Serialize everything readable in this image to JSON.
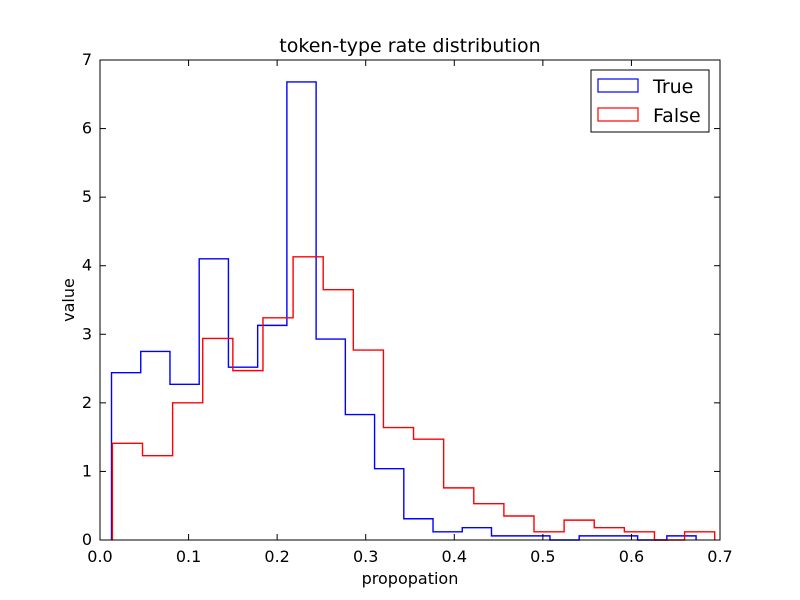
{
  "chart_data": {
    "type": "histogram",
    "title": "token-type rate distribution",
    "xlabel": "propopation",
    "ylabel": "value",
    "xlim": [
      0,
      0.7
    ],
    "ylim": [
      0,
      7
    ],
    "x_ticks": [
      "0.0",
      "0.1",
      "0.2",
      "0.3",
      "0.4",
      "0.5",
      "0.6",
      "0.7"
    ],
    "y_ticks": [
      "0",
      "1",
      "2",
      "3",
      "4",
      "5",
      "6",
      "7"
    ],
    "grid": false,
    "legend_position": "top-right",
    "series": [
      {
        "name": "True",
        "color": "#0000ff",
        "bins": [
          {
            "x0": 0.013,
            "x1": 0.046,
            "value": 2.44
          },
          {
            "x0": 0.046,
            "x1": 0.079,
            "value": 2.75
          },
          {
            "x0": 0.079,
            "x1": 0.112,
            "value": 2.27
          },
          {
            "x0": 0.112,
            "x1": 0.145,
            "value": 4.1
          },
          {
            "x0": 0.145,
            "x1": 0.178,
            "value": 2.52
          },
          {
            "x0": 0.178,
            "x1": 0.211,
            "value": 3.13
          },
          {
            "x0": 0.211,
            "x1": 0.244,
            "value": 6.68
          },
          {
            "x0": 0.244,
            "x1": 0.277,
            "value": 2.93
          },
          {
            "x0": 0.277,
            "x1": 0.31,
            "value": 1.83
          },
          {
            "x0": 0.31,
            "x1": 0.343,
            "value": 1.04
          },
          {
            "x0": 0.343,
            "x1": 0.376,
            "value": 0.31
          },
          {
            "x0": 0.376,
            "x1": 0.409,
            "value": 0.12
          },
          {
            "x0": 0.409,
            "x1": 0.442,
            "value": 0.18
          },
          {
            "x0": 0.442,
            "x1": 0.475,
            "value": 0.06
          },
          {
            "x0": 0.475,
            "x1": 0.508,
            "value": 0.06
          },
          {
            "x0": 0.508,
            "x1": 0.541,
            "value": 0.0
          },
          {
            "x0": 0.541,
            "x1": 0.574,
            "value": 0.06
          },
          {
            "x0": 0.574,
            "x1": 0.607,
            "value": 0.06
          },
          {
            "x0": 0.607,
            "x1": 0.64,
            "value": 0.0
          },
          {
            "x0": 0.64,
            "x1": 0.673,
            "value": 0.06
          }
        ]
      },
      {
        "name": "False",
        "color": "#ff0000",
        "bins": [
          {
            "x0": 0.014,
            "x1": 0.048,
            "value": 1.41
          },
          {
            "x0": 0.048,
            "x1": 0.082,
            "value": 1.23
          },
          {
            "x0": 0.082,
            "x1": 0.116,
            "value": 2.0
          },
          {
            "x0": 0.116,
            "x1": 0.15,
            "value": 2.94
          },
          {
            "x0": 0.15,
            "x1": 0.184,
            "value": 2.47
          },
          {
            "x0": 0.184,
            "x1": 0.218,
            "value": 3.24
          },
          {
            "x0": 0.218,
            "x1": 0.252,
            "value": 4.13
          },
          {
            "x0": 0.252,
            "x1": 0.286,
            "value": 3.65
          },
          {
            "x0": 0.286,
            "x1": 0.32,
            "value": 2.77
          },
          {
            "x0": 0.32,
            "x1": 0.354,
            "value": 1.64
          },
          {
            "x0": 0.354,
            "x1": 0.388,
            "value": 1.47
          },
          {
            "x0": 0.388,
            "x1": 0.422,
            "value": 0.76
          },
          {
            "x0": 0.422,
            "x1": 0.456,
            "value": 0.53
          },
          {
            "x0": 0.456,
            "x1": 0.49,
            "value": 0.35
          },
          {
            "x0": 0.49,
            "x1": 0.524,
            "value": 0.12
          },
          {
            "x0": 0.524,
            "x1": 0.558,
            "value": 0.29
          },
          {
            "x0": 0.558,
            "x1": 0.592,
            "value": 0.18
          },
          {
            "x0": 0.592,
            "x1": 0.626,
            "value": 0.12
          },
          {
            "x0": 0.626,
            "x1": 0.66,
            "value": 0.0
          },
          {
            "x0": 0.66,
            "x1": 0.694,
            "value": 0.12
          }
        ]
      }
    ]
  }
}
